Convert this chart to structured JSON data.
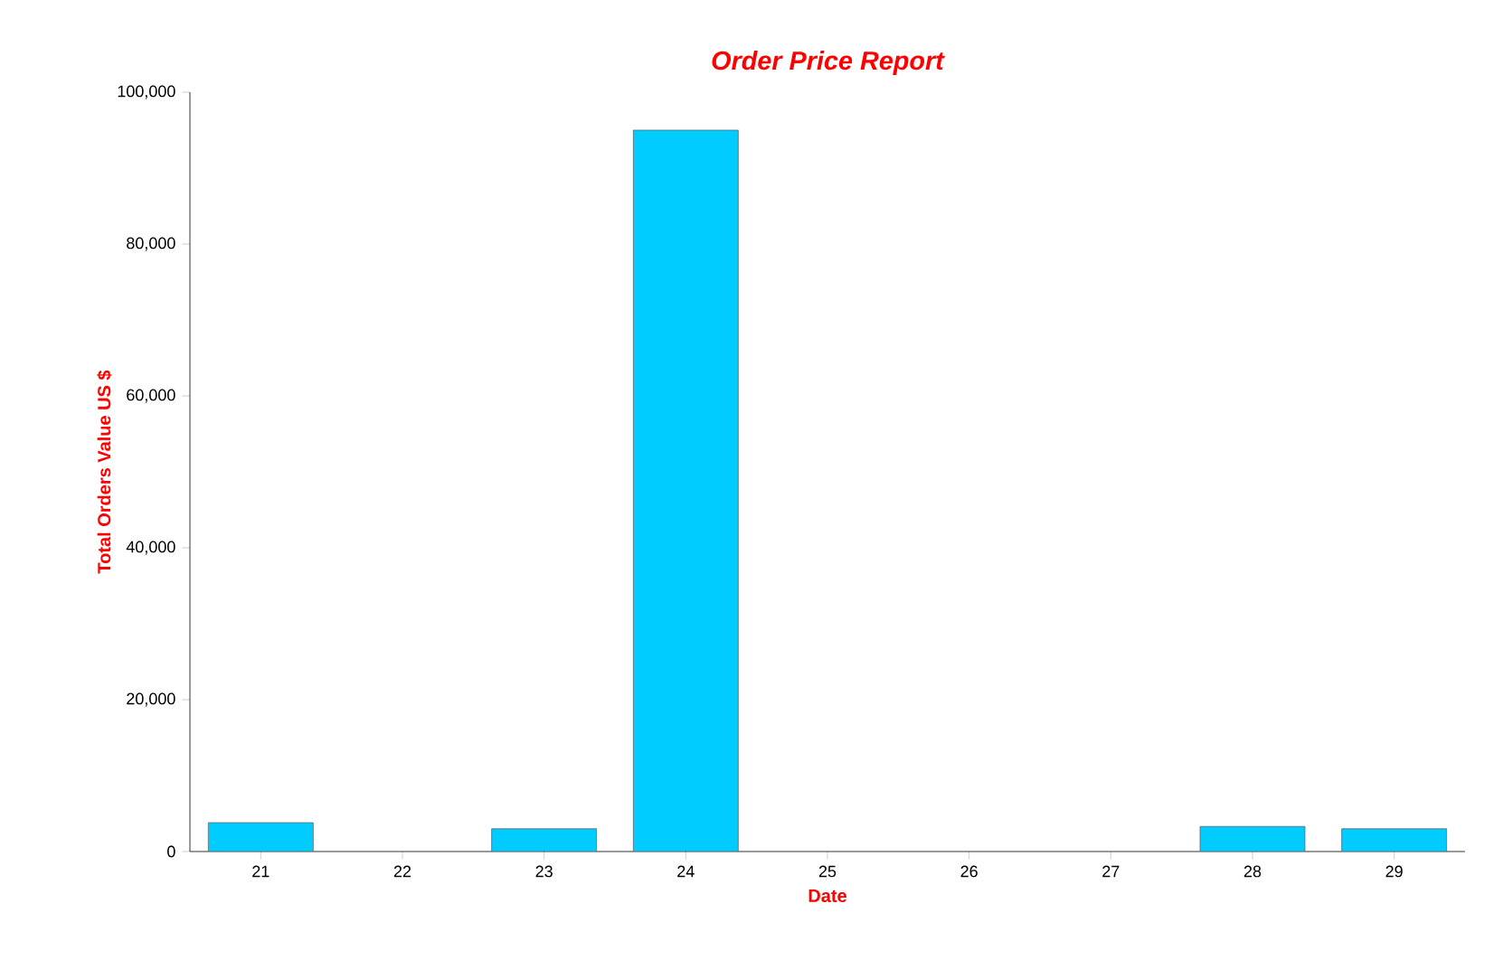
{
  "chart_data": {
    "type": "bar",
    "title": "Order Price Report",
    "xlabel": "Date",
    "ylabel": "Total Orders Value US $",
    "categories": [
      "21",
      "22",
      "23",
      "24",
      "25",
      "26",
      "27",
      "28",
      "29"
    ],
    "values": [
      3800,
      null,
      3000,
      95000,
      null,
      null,
      null,
      3300,
      3000
    ],
    "color": "#00ccff",
    "ylim": [
      0,
      100000
    ],
    "yticks": [
      {
        "value": 0,
        "label": "0"
      },
      {
        "value": 20000,
        "label": "20,000"
      },
      {
        "value": 40000,
        "label": "40,000"
      },
      {
        "value": 60000,
        "label": "60,000"
      },
      {
        "value": 80000,
        "label": "80,000"
      },
      {
        "value": 100000,
        "label": "100,000"
      }
    ],
    "grid": false
  }
}
